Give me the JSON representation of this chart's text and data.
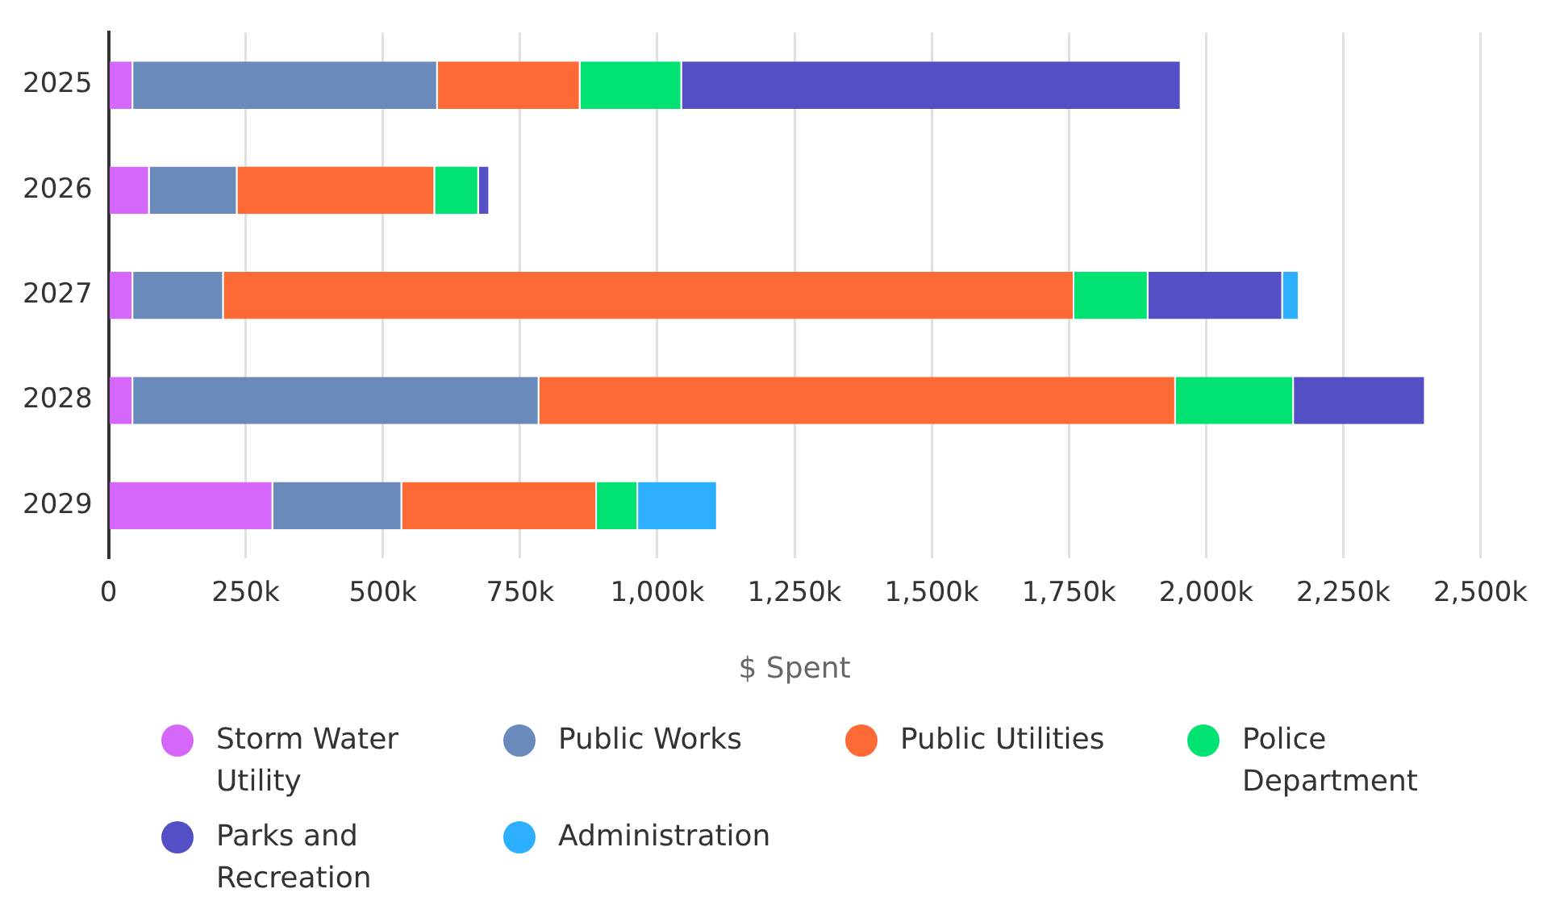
{
  "chart_data": {
    "type": "bar",
    "orientation": "horizontal",
    "stacked": true,
    "xlabel": "$ Spent",
    "categories": [
      "2025",
      "2026",
      "2027",
      "2028",
      "2029"
    ],
    "series": [
      {
        "name": "Storm Water Utility",
        "color": "#d568fb",
        "values": [
          45000,
          75000,
          45000,
          45000,
          300000
        ]
      },
      {
        "name": "Public Works",
        "color": "#6b8abc",
        "values": [
          555000,
          160000,
          165000,
          740000,
          235000
        ]
      },
      {
        "name": "Public Utilities",
        "color": "#fe6a35",
        "values": [
          260000,
          360000,
          1550000,
          1160000,
          355000
        ]
      },
      {
        "name": "Police Department",
        "color": "#00e272",
        "values": [
          185000,
          80000,
          135000,
          215000,
          75000
        ]
      },
      {
        "name": "Parks and Recreation",
        "color": "#544fc5",
        "values": [
          910000,
          20000,
          245000,
          240000,
          null
        ]
      },
      {
        "name": "Administration",
        "color": "#2caffe",
        "values": [
          null,
          null,
          30000,
          null,
          145000
        ]
      }
    ],
    "xlim": [
      0,
      2500000
    ],
    "xticks": [
      0,
      {
        "value": 250000,
        "label": "250k"
      },
      {
        "value": 500000,
        "label": "500k"
      },
      {
        "value": 750000,
        "label": "750k"
      },
      {
        "value": 1000000,
        "label": "1,000k"
      },
      {
        "value": 1250000,
        "label": "1,250k"
      },
      {
        "value": 1500000,
        "label": "1,500k"
      },
      {
        "value": 1750000,
        "label": "1,750k"
      },
      {
        "value": 2000000,
        "label": "2,000k"
      },
      {
        "value": 2250000,
        "label": "2,250k"
      },
      {
        "value": 2500000,
        "label": "2,500k"
      }
    ],
    "grid": "x",
    "legend": "bottom",
    "marker": "circle"
  }
}
